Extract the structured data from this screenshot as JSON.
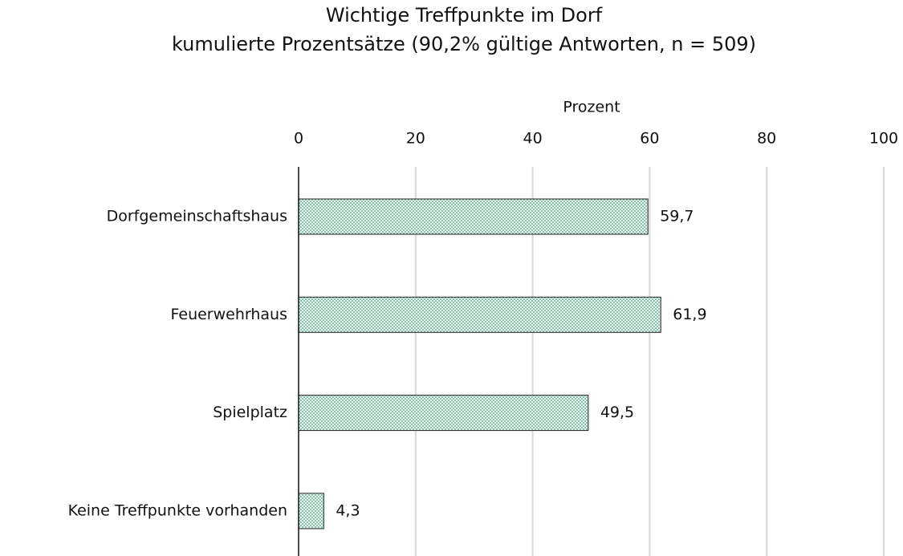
{
  "chart_data": {
    "type": "bar",
    "orientation": "horizontal",
    "title": "Wichtige Treffpunkte im Dorf",
    "subtitle": "kumulierte Prozentsätze (90,2% gültige Antworten, n = 509)",
    "x_label": "Prozent",
    "categories": [
      "Dorfgemeinschaftshaus",
      "Feuerwehrhaus",
      "Spielplatz",
      "Keine Treffpunkte vorhanden"
    ],
    "values": [
      59.7,
      61.9,
      49.5,
      4.3
    ],
    "value_labels": [
      "59,7",
      "61,9",
      "49,5",
      "4,3"
    ],
    "color": "#3a9a78",
    "xlim": [
      0,
      100
    ],
    "xticks": [
      0,
      20,
      40,
      60,
      80,
      100
    ],
    "grid": true
  }
}
